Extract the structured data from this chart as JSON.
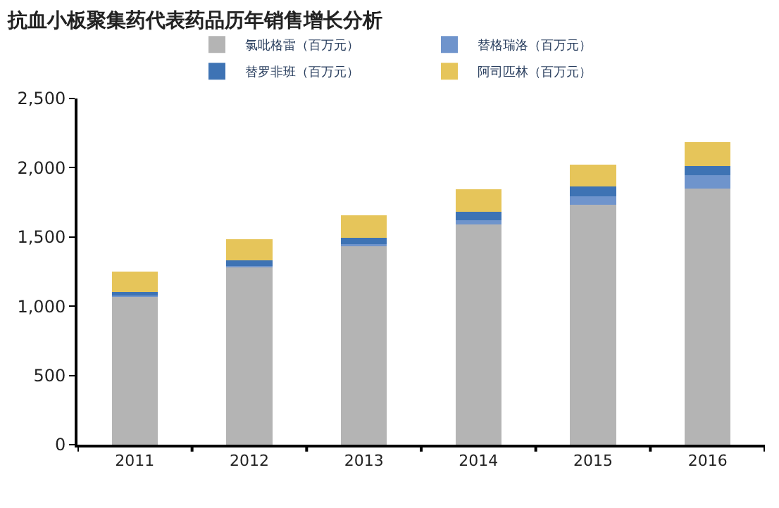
{
  "chart_data": {
    "type": "bar",
    "title": "抗血小板聚集药代表药品历年销售增长分析",
    "categories": [
      "2011",
      "2012",
      "2013",
      "2014",
      "2015",
      "2016"
    ],
    "stacked": true,
    "series": [
      {
        "name": "氯吡格雷（百万元）",
        "color": "#b4b4b4",
        "values": [
          1070,
          1285,
          1440,
          1590,
          1735,
          1850
        ]
      },
      {
        "name": "替格瑞洛（百万元）",
        "color": "#6f94cc",
        "values": [
          5,
          5,
          10,
          30,
          60,
          95
        ]
      },
      {
        "name": "替罗非班（百万元）",
        "color": "#3e73b4",
        "values": [
          30,
          40,
          45,
          60,
          70,
          65
        ]
      },
      {
        "name": "阿司匹林（百万元）",
        "color": "#e6c55a",
        "values": [
          145,
          155,
          160,
          165,
          155,
          175
        ]
      }
    ],
    "ylim": [
      0,
      2500
    ],
    "yticks": [
      0,
      {
        "value": 500,
        "label": "500"
      },
      {
        "value": 1000,
        "label": "1,000"
      },
      {
        "value": 1500,
        "label": "1,500"
      },
      {
        "value": 2000,
        "label": "2,000"
      },
      {
        "value": 2500,
        "label": "2,500"
      }
    ],
    "legend": "top"
  }
}
